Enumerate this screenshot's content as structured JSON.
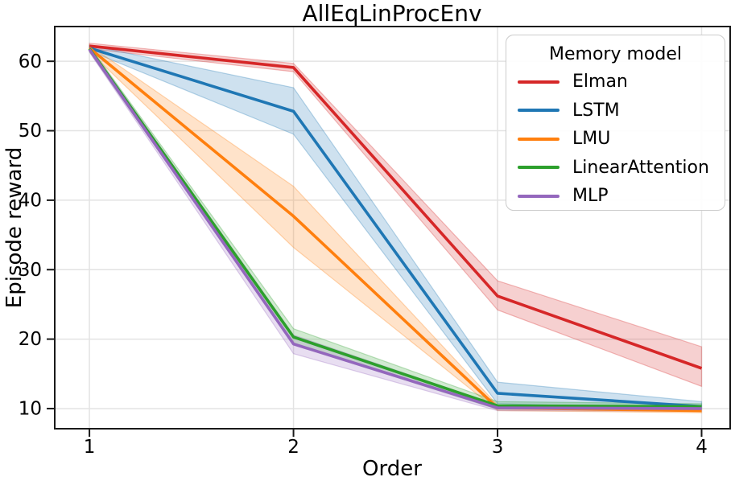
{
  "figure": {
    "title": "AllEqLinProcEnv"
  },
  "legend": {
    "title": "Memory model"
  },
  "chart_data": {
    "type": "line",
    "title": "AllEqLinProcEnv",
    "xlabel": "Order",
    "ylabel": "Episode reward",
    "x": [
      1,
      2,
      3,
      4
    ],
    "xticks": [
      1,
      2,
      3,
      4
    ],
    "yticks": [
      10,
      20,
      30,
      40,
      50,
      60
    ],
    "xlim": [
      0.83,
      4.14
    ],
    "ylim": [
      7.1,
      65.0
    ],
    "grid": true,
    "grid_color": "#e3e3e3",
    "legend_position": "upper right",
    "legend_title": "Memory model",
    "band_opacity": 0.22,
    "series": [
      {
        "name": "Elman",
        "color": "#d62728",
        "values": [
          62.2,
          59.1,
          26.2,
          15.8
        ],
        "band_low": [
          61.8,
          58.5,
          24.2,
          13.2
        ],
        "band_high": [
          62.6,
          59.7,
          28.4,
          18.9
        ]
      },
      {
        "name": "LSTM",
        "color": "#1f77b4",
        "values": [
          61.9,
          52.8,
          12.2,
          10.3
        ],
        "band_low": [
          61.5,
          49.5,
          10.7,
          9.9
        ],
        "band_high": [
          62.3,
          56.2,
          13.8,
          11.0
        ]
      },
      {
        "name": "LMU",
        "color": "#ff7f0e",
        "values": [
          61.9,
          37.7,
          10.1,
          9.7
        ],
        "band_low": [
          61.4,
          33.2,
          9.7,
          9.4
        ],
        "band_high": [
          62.3,
          42.0,
          10.5,
          10.0
        ]
      },
      {
        "name": "LinearAttention",
        "color": "#2ca02c",
        "values": [
          61.8,
          20.3,
          10.4,
          10.3
        ],
        "band_low": [
          61.4,
          19.2,
          9.9,
          10.0
        ],
        "band_high": [
          62.2,
          21.5,
          11.0,
          10.7
        ]
      },
      {
        "name": "MLP",
        "color": "#9467bd",
        "values": [
          61.7,
          19.3,
          10.1,
          10.0
        ],
        "band_low": [
          61.3,
          17.9,
          9.7,
          9.6
        ],
        "band_high": [
          62.1,
          20.6,
          10.5,
          10.4
        ]
      }
    ]
  }
}
